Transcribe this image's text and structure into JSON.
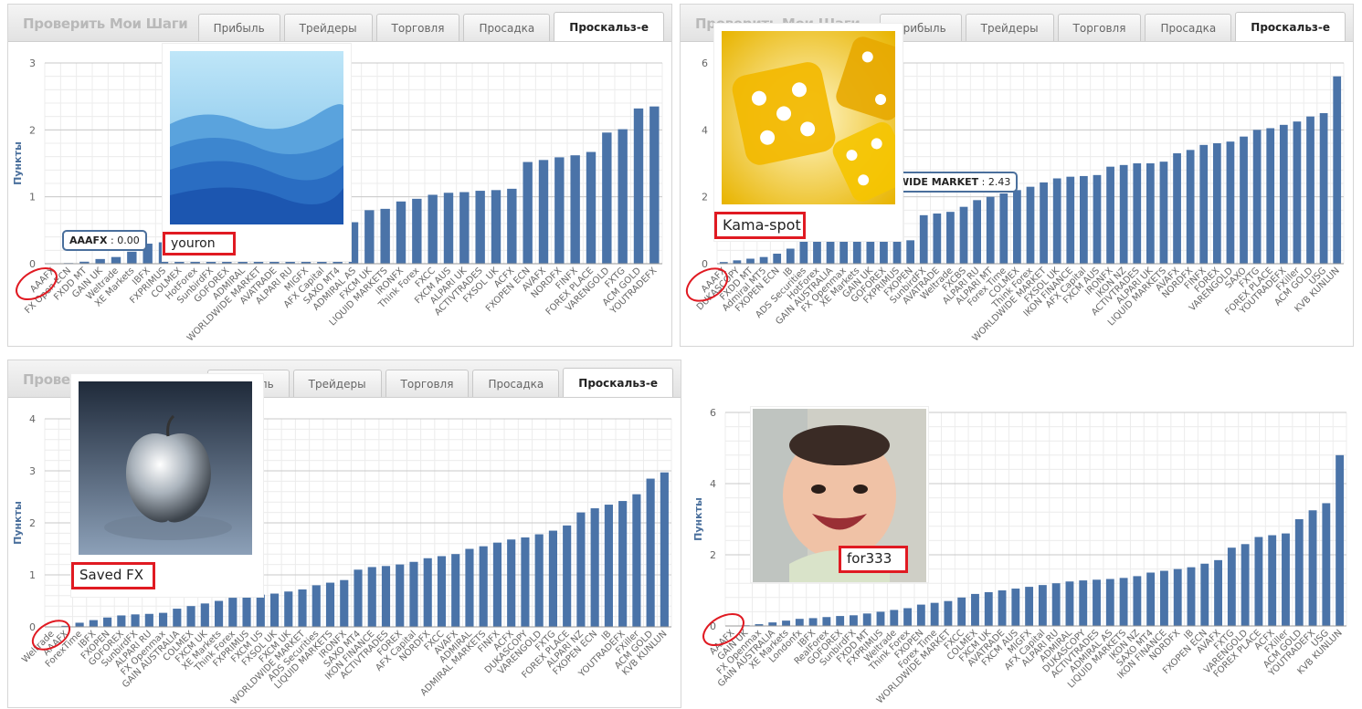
{
  "panels": [
    {
      "title": "Проверить Мои Шаги",
      "tabs": [
        "Прибыль",
        "Трейдеры",
        "Торговля",
        "Просадка",
        "Проскальз-е"
      ],
      "active_tab": 4,
      "user_label": "youron",
      "tooltip_name": "AAAFX",
      "tooltip_value": ": 0.00",
      "picture": "blue-mountains-image"
    },
    {
      "title": "Проверить Мои Шаги",
      "tabs": [
        "Прибыль",
        "Трейдеры",
        "Торговля",
        "Просадка",
        "Проскальз-е"
      ],
      "active_tab": 4,
      "user_label": "Kama-spot",
      "tooltip_name": "WIDE MARKET",
      "tooltip_value": ": 2.43",
      "picture": "yellow-dice-image"
    },
    {
      "title": "Проверить",
      "tabs": [
        "Прибыль",
        "Трейдеры",
        "Торговля",
        "Просадка",
        "Проскальз-е"
      ],
      "active_tab": 4,
      "user_label": "Saved FX",
      "picture": "silver-apple-image"
    },
    {
      "user_label": "for333",
      "picture": "smiling-baby-image"
    }
  ],
  "colors": {
    "bar": "#4a73a8",
    "grid_major": "#c9c9c9",
    "grid_minor": "#ececec",
    "annotation": "#e01a22",
    "tick_text": "#666666"
  },
  "chart_data": [
    {
      "type": "bar",
      "ylabel": "Пункты",
      "ylim": [
        0,
        3
      ],
      "yticks": [
        0,
        1,
        2,
        3
      ],
      "categories": [
        "AAAFX",
        "FX Open ECN",
        "FXDD MT",
        "GAIN UK",
        "Weltrade",
        "XE Markets",
        "IBFX",
        "FXPRIMUS",
        "COLMEX",
        "HotForex",
        "SunbirdFX",
        "GOFOREX",
        "ADMIRAL",
        "WORLDWIDE MARKET",
        "AVATRADE",
        "ALPARI RU",
        "MIGFX",
        "AFX Capital",
        "SAXO MT4",
        "ADMIRAL AS",
        "FXCM UK",
        "LIQUID MARKETS",
        "IRONFX",
        "Think Forex",
        "FXCC",
        "FXCM AUS",
        "ALPARI UK",
        "ACTIVTRADES",
        "FXSOL UK",
        "ACFX",
        "FXOPEN ECN",
        "AVAFX",
        "NORDFX",
        "FINFX",
        "FOREX PLACE",
        "VARENGOLD",
        "FXTG",
        "ACM GOLD",
        "YOUTRADEFX"
      ],
      "values": [
        0.0,
        0.01,
        0.03,
        0.07,
        0.1,
        0.18,
        0.3,
        0.32,
        0.1,
        0.1,
        0.1,
        0.1,
        0.1,
        0.1,
        0.1,
        0.1,
        0.1,
        0.1,
        0.1,
        0.62,
        0.8,
        0.82,
        0.93,
        0.97,
        1.03,
        1.06,
        1.07,
        1.09,
        1.1,
        1.12,
        1.52,
        1.55,
        1.59,
        1.62,
        1.67,
        1.96,
        2.01,
        2.32,
        2.35
      ],
      "extra_values": [
        0.0,
        0.01,
        0.02,
        0.05,
        0.08,
        0.12,
        0.22,
        0.3,
        0.34,
        0.1,
        0.1,
        0.1,
        0.1,
        0.1,
        0.1,
        0.1,
        0.1,
        0.1,
        0.1,
        0.1,
        0.1,
        0.1,
        0.1,
        0.1,
        0.1,
        0.1,
        0.1,
        0.1,
        0.1,
        0.1,
        0.1,
        0.1,
        0.1,
        0.1,
        0.1,
        0.1,
        0.1,
        0.1,
        0.1,
        0.1,
        0.45,
        0.62,
        0.81,
        0.82,
        0.86,
        0.93,
        0.96,
        0.99,
        1.03,
        1.05,
        1.06,
        1.07,
        1.08,
        1.09,
        1.1,
        1.1,
        1.12,
        1.12,
        1.51,
        1.52,
        1.55,
        1.57,
        1.58,
        1.62,
        1.64,
        1.66,
        1.96,
        1.98,
        2.0,
        2.01,
        2.02,
        2.3,
        2.33,
        2.35
      ]
    },
    {
      "type": "bar",
      "ylabel": "",
      "ylim": [
        0,
        6
      ],
      "yticks": [
        0,
        2,
        4,
        6
      ],
      "categories": [
        "AAAFX",
        "DUKASCOPY",
        "FXDD MT",
        "Admiral MT5",
        "FXOPEN ECN",
        "IB",
        "ADS Securities",
        "HotForex",
        "GAIN AUSTRALIA",
        "FX Openmax",
        "XE Markets",
        "GAIN UK",
        "GOFOREX",
        "FXPRIMUS",
        "FXOPEN",
        "SunbirdFX",
        "AVATRADE",
        "Weltrade",
        "FXCBS",
        "ALPARI RU",
        "ALPARI MT",
        "Forex Time",
        "COLMEX",
        "Think Forex",
        "WORLDWIDE MARKET",
        "FXSOL UK",
        "IKON FINANCE",
        "AFX Capital",
        "FXCM AUS",
        "IRONFX",
        "IKON NZ",
        "ACTIVTRADES",
        "ALPARI UK",
        "LIQUID MARKETS",
        "AVAFX",
        "NORDFX",
        "FINFX",
        "FOREX",
        "VARENGOLD",
        "SAXO",
        "FXTG",
        "FOREX PLACE",
        "YOUTRADEFX",
        "FXiller",
        "ACM GOLD",
        "USG",
        "KVB KUNLUN"
      ],
      "values": [
        0.05,
        0.1,
        0.15,
        0.2,
        0.3,
        0.45,
        0.7,
        0.7,
        0.7,
        0.7,
        0.7,
        0.7,
        0.7,
        0.7,
        0.7,
        1.45,
        1.5,
        1.55,
        1.7,
        1.9,
        2.0,
        2.1,
        2.2,
        2.3,
        2.43,
        2.55,
        2.6,
        2.62,
        2.65,
        2.9,
        2.95,
        3.0,
        3.0,
        3.05,
        3.3,
        3.4,
        3.55,
        3.6,
        3.65,
        3.8,
        4.0,
        4.05,
        4.15,
        4.25,
        4.4,
        4.5,
        5.6
      ]
    },
    {
      "type": "bar",
      "ylabel": "Пункты",
      "ylim": [
        0,
        4
      ],
      "yticks": [
        0,
        1,
        2,
        3,
        4
      ],
      "categories": [
        "Weltrade",
        "AAAFX",
        "ForexTime",
        "IBFX",
        "FXOPEN",
        "GOFOREX",
        "SunbirdFX",
        "ALPARI RU",
        "FX Openmax",
        "GAIN AUSTRALIA",
        "COLMEX",
        "FXCM UK",
        "XE Markets",
        "Think Forex",
        "FXPRIMUS",
        "FXCM US",
        "FXSOL UK",
        "FXCM UK",
        "WORLDWIDE MARKET",
        "ADS Securities",
        "LIQUID MARKETS",
        "IRONFX",
        "SAXO MT4",
        "IKON FINANCE",
        "ACTIVTRADES",
        "FOREX",
        "AFX Capital",
        "NORDFX",
        "FXCC",
        "AVAFX",
        "ADMIRAL",
        "ADMIRAL MARKETS",
        "FINFX",
        "ACFX",
        "DUKASCOPY",
        "VARENGOLD",
        "FXTG",
        "FOREX PLACE",
        "ALPARI NZ",
        "FXOPEN ECN",
        "IB",
        "YOUTRADEFX",
        "FXiller",
        "ACM GOLD",
        "KVB KUNLUN"
      ],
      "values": [
        0.0,
        0.02,
        0.08,
        0.13,
        0.18,
        0.22,
        0.24,
        0.25,
        0.27,
        0.35,
        0.4,
        0.45,
        0.5,
        0.56,
        0.6,
        0.62,
        0.64,
        0.68,
        0.72,
        0.8,
        0.85,
        0.9,
        1.1,
        1.15,
        1.17,
        1.2,
        1.25,
        1.32,
        1.36,
        1.4,
        1.5,
        1.55,
        1.62,
        1.68,
        1.72,
        1.78,
        1.85,
        1.95,
        2.2,
        2.28,
        2.35,
        2.42,
        2.55,
        2.85,
        2.97
      ]
    },
    {
      "type": "bar",
      "ylabel": "Пункты",
      "ylim": [
        0,
        6
      ],
      "yticks": [
        0,
        2,
        4,
        6
      ],
      "categories": [
        "AAAFX",
        "GAIN UK",
        "FX Openmax",
        "GAIN AUSTRALIA",
        "XE Markets",
        "Londonfx",
        "IBFX",
        "RealForex",
        "GOFOREX",
        "SunbirdFX",
        "FXDD MT",
        "FXPRIMUS",
        "Weltrade",
        "Think Forex",
        "FXOPEN",
        "Forex Time",
        "WORLDWIDE MARKET",
        "FXCC",
        "COLMEX",
        "FXCM UK",
        "AVATRADE",
        "FXCM AUS",
        "MIGFX",
        "AFX Capital",
        "ALPARI RU",
        "ADMIRAL",
        "DUKASCOPY",
        "ACTIVTRADES",
        "ADMIRAL AS",
        "LIQUID MARKETS",
        "IKON NZ",
        "SAXO MT4",
        "IKON FINANCE",
        "NORDFX",
        "IB",
        "FXOPEN ECN",
        "AVAFX",
        "FXTG",
        "VARENGOLD",
        "FOREX PLACE",
        "ACFX",
        "FXiller",
        "ACM GOLD",
        "YOUTRADEFX",
        "USG",
        "KVB KUNLUN"
      ],
      "values": [
        0.0,
        0.02,
        0.05,
        0.1,
        0.15,
        0.2,
        0.22,
        0.25,
        0.28,
        0.3,
        0.35,
        0.4,
        0.45,
        0.5,
        0.6,
        0.65,
        0.7,
        0.8,
        0.9,
        0.95,
        1.0,
        1.05,
        1.1,
        1.15,
        1.2,
        1.25,
        1.28,
        1.3,
        1.32,
        1.35,
        1.4,
        1.5,
        1.55,
        1.6,
        1.65,
        1.75,
        1.85,
        2.2,
        2.3,
        2.5,
        2.55,
        2.6,
        3.0,
        3.25,
        3.45,
        4.8
      ]
    }
  ]
}
